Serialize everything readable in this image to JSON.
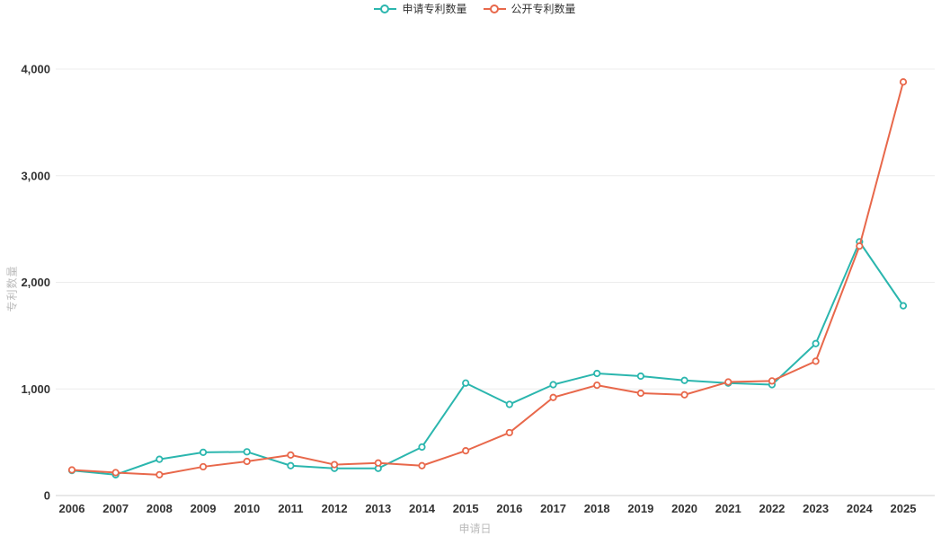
{
  "legend": {
    "items": [
      {
        "label": "申请专利数量"
      },
      {
        "label": "公开专利数量"
      }
    ]
  },
  "chart_data": {
    "type": "line",
    "title": "",
    "xlabel": "申请日",
    "ylabel": "专利数量",
    "x": [
      2006,
      2007,
      2008,
      2009,
      2010,
      2011,
      2012,
      2013,
      2014,
      2015,
      2016,
      2017,
      2018,
      2019,
      2020,
      2021,
      2022,
      2023,
      2024,
      2025
    ],
    "series": [
      {
        "name": "申请专利数量",
        "color": "#2bb6ae",
        "values": [
          235,
          195,
          340,
          405,
          410,
          280,
          255,
          255,
          455,
          1055,
          855,
          1040,
          1145,
          1120,
          1080,
          1055,
          1040,
          1425,
          2380,
          1780
        ]
      },
      {
        "name": "公开专利数量",
        "color": "#e8684b",
        "values": [
          240,
          215,
          195,
          270,
          320,
          380,
          290,
          305,
          280,
          420,
          590,
          920,
          1035,
          960,
          945,
          1065,
          1075,
          1260,
          2340,
          3880
        ]
      }
    ],
    "ylim": [
      0,
      4000
    ],
    "yticks": [
      0,
      1000,
      2000,
      3000,
      4000
    ],
    "ytick_labels": [
      "0",
      "1,000",
      "2,000",
      "3,000",
      "4,000"
    ],
    "grid": true,
    "legend_position": "top-center",
    "colors": {
      "gridline": "#ececec",
      "axis_line": "#e0e0e0",
      "tick_text": "#333333",
      "axis_title_text": "#bbbbbb",
      "background": "#ffffff"
    }
  }
}
